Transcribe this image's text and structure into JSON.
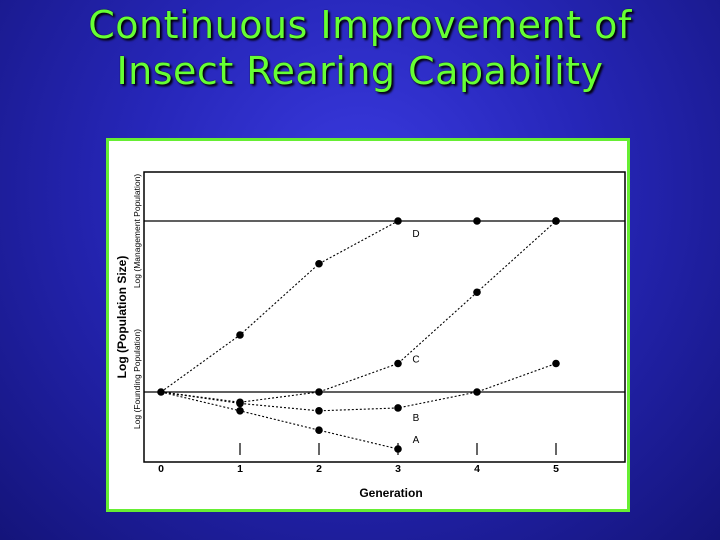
{
  "slide": {
    "title_line1": "Continuous Improvement of",
    "title_line2": "Insect Rearing Capability"
  },
  "colors": {
    "background": "#2626b8",
    "title": "#66ff33",
    "frame": "#66ee33",
    "ink": "#000000"
  },
  "chart_data": {
    "type": "line",
    "xlabel": "Generation",
    "ylabel": "Log (Population Size)",
    "ylabel_secondary": [
      "Log (Founding Population)",
      "Log (Management Population)"
    ],
    "x_ticks": [
      0,
      1,
      2,
      3,
      4,
      5
    ],
    "xlim": [
      0,
      5.1
    ],
    "ylim": [
      -1.0,
      3.6
    ],
    "reference_lines": [
      {
        "name": "Founding Population",
        "y": 0
      },
      {
        "name": "Management Population",
        "y": 3.0
      }
    ],
    "series": [
      {
        "name": "D",
        "x": [
          0,
          1,
          2,
          3,
          4,
          5
        ],
        "y": [
          0,
          1.0,
          2.25,
          3.0,
          3.0,
          3.0
        ]
      },
      {
        "name": "C",
        "x": [
          0,
          1,
          2,
          3,
          4,
          5
        ],
        "y": [
          0,
          -0.18,
          0,
          0.5,
          1.75,
          3.0
        ]
      },
      {
        "name": "B",
        "x": [
          0,
          1,
          2,
          3,
          4,
          5
        ],
        "y": [
          0,
          -0.2,
          -0.33,
          -0.28,
          0,
          0.5
        ]
      },
      {
        "name": "A",
        "x": [
          0,
          1,
          2,
          3
        ],
        "y": [
          0,
          -0.33,
          -0.67,
          -1.0
        ]
      }
    ],
    "grid": false,
    "legend": "none"
  }
}
